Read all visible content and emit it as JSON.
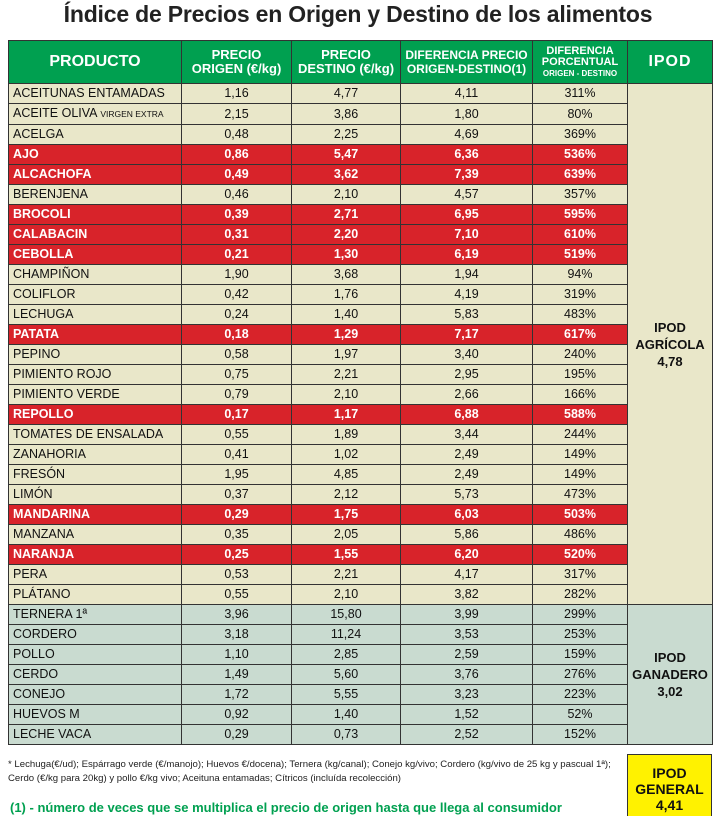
{
  "title": "Índice de Precios en Origen y Destino de los alimentos",
  "headers": {
    "producto": "PRODUCTO",
    "origen_1": "PRECIO",
    "origen_2": "ORIGEN (€/kg)",
    "destino_1": "PRECIO",
    "destino_2": "DESTINO (€/kg)",
    "dif_1": "DIFERENCIA PRECIO",
    "dif_2": "ORIGEN-DESTINO(1)",
    "pct_1": "DIFERENCIA",
    "pct_2": "PORCENTUAL",
    "pct_3": "ORIGEN - DESTINO",
    "ipod": "IPOD"
  },
  "colors": {
    "header": "#00a050",
    "agricola": "#e9e7c9",
    "ganadero": "#c9dbd0",
    "highlight": "#d8232a",
    "general": "#fff200"
  },
  "rows": [
    {
      "producto": "ACEITUNAS ENTAMADAS",
      "sub": "",
      "origen": "1,16",
      "destino": "4,77",
      "dif": "4,11",
      "pct": "311%",
      "group": "agr",
      "hl": false
    },
    {
      "producto": "ACEITE OLIVA",
      "sub": "VIRGEN EXTRA",
      "origen": "2,15",
      "destino": "3,86",
      "dif": "1,80",
      "pct": "80%",
      "group": "agr",
      "hl": false
    },
    {
      "producto": "ACELGA",
      "sub": "",
      "origen": "0,48",
      "destino": "2,25",
      "dif": "4,69",
      "pct": "369%",
      "group": "agr",
      "hl": false
    },
    {
      "producto": "AJO",
      "sub": "",
      "origen": "0,86",
      "destino": "5,47",
      "dif": "6,36",
      "pct": "536%",
      "group": "agr",
      "hl": true
    },
    {
      "producto": "ALCACHOFA",
      "sub": "",
      "origen": "0,49",
      "destino": "3,62",
      "dif": "7,39",
      "pct": "639%",
      "group": "agr",
      "hl": true
    },
    {
      "producto": "BERENJENA",
      "sub": "",
      "origen": "0,46",
      "destino": "2,10",
      "dif": "4,57",
      "pct": "357%",
      "group": "agr",
      "hl": false
    },
    {
      "producto": "BROCOLI",
      "sub": "",
      "origen": "0,39",
      "destino": "2,71",
      "dif": "6,95",
      "pct": "595%",
      "group": "agr",
      "hl": true
    },
    {
      "producto": "CALABACIN",
      "sub": "",
      "origen": "0,31",
      "destino": "2,20",
      "dif": "7,10",
      "pct": "610%",
      "group": "agr",
      "hl": true
    },
    {
      "producto": "CEBOLLA",
      "sub": "",
      "origen": "0,21",
      "destino": "1,30",
      "dif": "6,19",
      "pct": "519%",
      "group": "agr",
      "hl": true
    },
    {
      "producto": "CHAMPIÑON",
      "sub": "",
      "origen": "1,90",
      "destino": "3,68",
      "dif": "1,94",
      "pct": "94%",
      "group": "agr",
      "hl": false
    },
    {
      "producto": "COLIFLOR",
      "sub": "",
      "origen": "0,42",
      "destino": "1,76",
      "dif": "4,19",
      "pct": "319%",
      "group": "agr",
      "hl": false
    },
    {
      "producto": "LECHUGA",
      "sub": "",
      "origen": "0,24",
      "destino": "1,40",
      "dif": "5,83",
      "pct": "483%",
      "group": "agr",
      "hl": false
    },
    {
      "producto": "PATATA",
      "sub": "",
      "origen": "0,18",
      "destino": "1,29",
      "dif": "7,17",
      "pct": "617%",
      "group": "agr",
      "hl": true
    },
    {
      "producto": "PEPINO",
      "sub": "",
      "origen": "0,58",
      "destino": "1,97",
      "dif": "3,40",
      "pct": "240%",
      "group": "agr",
      "hl": false
    },
    {
      "producto": "PIMIENTO ROJO",
      "sub": "",
      "origen": "0,75",
      "destino": "2,21",
      "dif": "2,95",
      "pct": "195%",
      "group": "agr",
      "hl": false
    },
    {
      "producto": "PIMIENTO VERDE",
      "sub": "",
      "origen": "0,79",
      "destino": "2,10",
      "dif": "2,66",
      "pct": "166%",
      "group": "agr",
      "hl": false
    },
    {
      "producto": "REPOLLO",
      "sub": "",
      "origen": "0,17",
      "destino": "1,17",
      "dif": "6,88",
      "pct": "588%",
      "group": "agr",
      "hl": true
    },
    {
      "producto": "TOMATES DE ENSALADA",
      "sub": "",
      "origen": "0,55",
      "destino": "1,89",
      "dif": "3,44",
      "pct": "244%",
      "group": "agr",
      "hl": false
    },
    {
      "producto": "ZANAHORIA",
      "sub": "",
      "origen": "0,41",
      "destino": "1,02",
      "dif": "2,49",
      "pct": "149%",
      "group": "agr",
      "hl": false
    },
    {
      "producto": "FRESÓN",
      "sub": "",
      "origen": "1,95",
      "destino": "4,85",
      "dif": "2,49",
      "pct": "149%",
      "group": "agr",
      "hl": false
    },
    {
      "producto": "LIMÓN",
      "sub": "",
      "origen": "0,37",
      "destino": "2,12",
      "dif": "5,73",
      "pct": "473%",
      "group": "agr",
      "hl": false
    },
    {
      "producto": "MANDARINA",
      "sub": "",
      "origen": "0,29",
      "destino": "1,75",
      "dif": "6,03",
      "pct": "503%",
      "group": "agr",
      "hl": true
    },
    {
      "producto": "MANZANA",
      "sub": "",
      "origen": "0,35",
      "destino": "2,05",
      "dif": "5,86",
      "pct": "486%",
      "group": "agr",
      "hl": false
    },
    {
      "producto": "NARANJA",
      "sub": "",
      "origen": "0,25",
      "destino": "1,55",
      "dif": "6,20",
      "pct": "520%",
      "group": "agr",
      "hl": true
    },
    {
      "producto": "PERA",
      "sub": "",
      "origen": "0,53",
      "destino": "2,21",
      "dif": "4,17",
      "pct": "317%",
      "group": "agr",
      "hl": false
    },
    {
      "producto": "PLÁTANO",
      "sub": "",
      "origen": "0,55",
      "destino": "2,10",
      "dif": "3,82",
      "pct": "282%",
      "group": "agr",
      "hl": false
    },
    {
      "producto": "TERNERA 1ª",
      "sub": "",
      "origen": "3,96",
      "destino": "15,80",
      "dif": "3,99",
      "pct": "299%",
      "group": "gan",
      "hl": false
    },
    {
      "producto": "CORDERO",
      "sub": "",
      "origen": "3,18",
      "destino": "11,24",
      "dif": "3,53",
      "pct": "253%",
      "group": "gan",
      "hl": false
    },
    {
      "producto": "POLLO",
      "sub": "",
      "origen": "1,10",
      "destino": "2,85",
      "dif": "2,59",
      "pct": "159%",
      "group": "gan",
      "hl": false
    },
    {
      "producto": "CERDO",
      "sub": "",
      "origen": "1,49",
      "destino": "5,60",
      "dif": "3,76",
      "pct": "276%",
      "group": "gan",
      "hl": false
    },
    {
      "producto": "CONEJO",
      "sub": "",
      "origen": "1,72",
      "destino": "5,55",
      "dif": "3,23",
      "pct": "223%",
      "group": "gan",
      "hl": false
    },
    {
      "producto": "HUEVOS M",
      "sub": "",
      "origen": "0,92",
      "destino": "1,40",
      "dif": "1,52",
      "pct": "52%",
      "group": "gan",
      "hl": false
    },
    {
      "producto": "LECHE VACA",
      "sub": "",
      "origen": "0,29",
      "destino": "0,73",
      "dif": "2,52",
      "pct": "152%",
      "group": "gan",
      "hl": false
    }
  ],
  "ipod_agricola": {
    "label1": "IPOD",
    "label2": "AGRÍCOLA",
    "value": "4,78"
  },
  "ipod_ganadero": {
    "label1": "IPOD",
    "label2": "GANADERO",
    "value": "3,02"
  },
  "ipod_general": {
    "label1": "IPOD",
    "label2": "GENERAL",
    "value": "4,41"
  },
  "note": "* Lechuga(€/ud); Espárrago verde (€/manojo); Huevos €/docena); Ternera (kg/canal); Conejo kg/vivo; Cordero (kg/vivo de 25 kg y pascual 1ª); Cerdo (€/kg para 20kg) y pollo €/kg vivo; Aceituna entamadas; Cítricos (incluída recolección)",
  "footnote": "(1) - número de veces que se multiplica el precio de origen hasta que llega al consumidor"
}
